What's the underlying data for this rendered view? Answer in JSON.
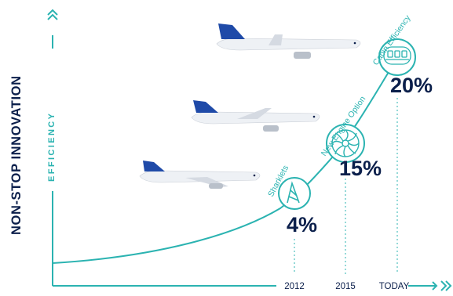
{
  "y_axis": {
    "title": "NON-STOP INNOVATION",
    "subtitle": "EFFICIENCY"
  },
  "x_axis": {
    "ticks": [
      "2012",
      "2015",
      "TODAY"
    ]
  },
  "milestones": [
    {
      "label": "Sharklets",
      "value": "4%",
      "icon": "sharklet-wingtip-icon"
    },
    {
      "label": "New Engine Option",
      "value": "15%",
      "icon": "engine-fan-icon"
    },
    {
      "label": "Cabin Efficiency",
      "value": "20%",
      "icon": "cabin-seats-icon"
    }
  ],
  "colors": {
    "accent": "#2bb3b1",
    "navy": "#0b1f4b",
    "aircraft_tail": "#1f4aa8"
  },
  "aircraft_icons": [
    "aircraft-lower-icon",
    "aircraft-middle-icon",
    "aircraft-top-icon"
  ]
}
